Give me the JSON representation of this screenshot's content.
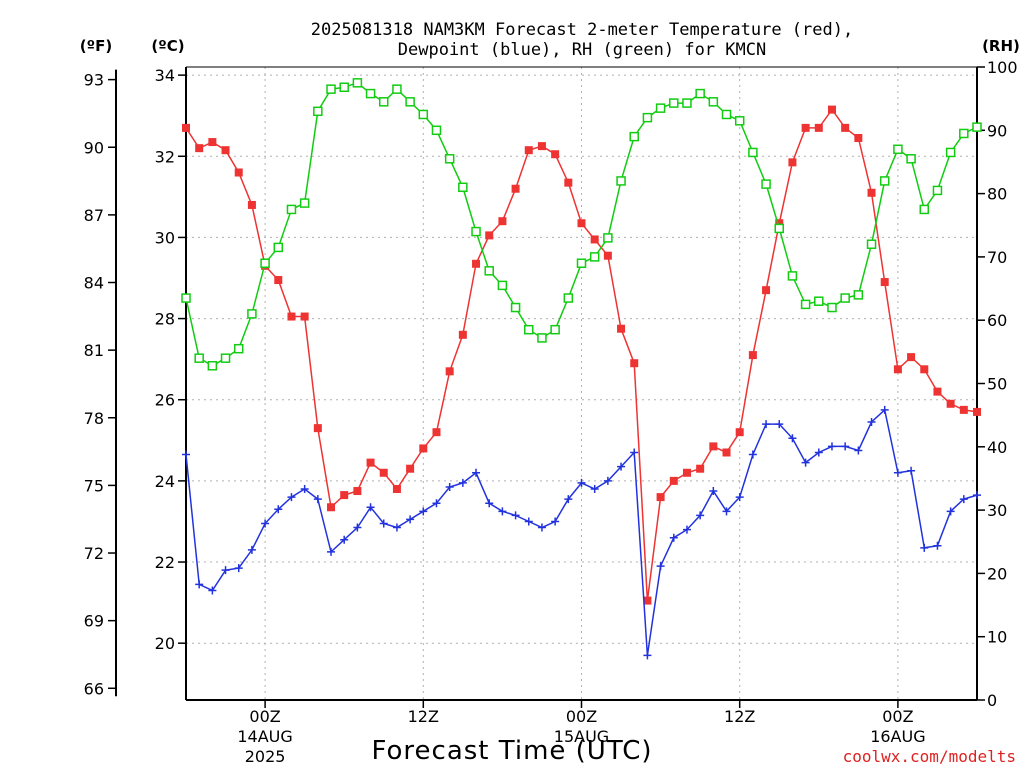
{
  "title_line1": "2025081318 NAM3KM Forecast 2-meter Temperature (red),",
  "title_line2": "Dewpoint (blue), RH (green) for KMCN",
  "credit": "coolwx.com/modelts",
  "colors": {
    "temperature": "#ee3333",
    "dewpoint": "#2233dd",
    "rh": "#11cc11",
    "grid": "#b0b0b0"
  },
  "chart_data": {
    "type": "line",
    "title": "2025081318 NAM3KM Forecast 2-meter Temperature (red), Dewpoint (blue), RH (green) for KMCN",
    "xlabel": "Forecast Time (UTC)",
    "x_unit": "forecast hour",
    "x_range": [
      0,
      60
    ],
    "x_ticks": [
      {
        "x": 6,
        "label": "00Z",
        "sub": [
          "14AUG",
          "2025"
        ]
      },
      {
        "x": 18,
        "label": "12Z",
        "sub": []
      },
      {
        "x": 30,
        "label": "00Z",
        "sub": [
          "15AUG"
        ]
      },
      {
        "x": 42,
        "label": "12Z",
        "sub": []
      },
      {
        "x": 54,
        "label": "00Z",
        "sub": [
          "16AUG"
        ]
      }
    ],
    "left_axis_f": {
      "label": "(ºF)",
      "ticks": [
        66,
        69,
        72,
        75,
        78,
        81,
        84,
        87,
        90,
        93
      ]
    },
    "left_axis_c": {
      "label": "(ºC)",
      "range": [
        18.6,
        34.2
      ],
      "ticks": [
        20,
        22,
        24,
        26,
        28,
        30,
        32,
        34
      ]
    },
    "right_axis": {
      "label": "(RH)",
      "range": [
        0,
        100
      ],
      "ticks": [
        0,
        10,
        20,
        30,
        40,
        50,
        60,
        70,
        80,
        90,
        100
      ]
    },
    "grid": true,
    "series": [
      {
        "name": "Temperature",
        "axis": "celsius",
        "marker": "filled-square",
        "x": [
          0,
          1,
          2,
          3,
          4,
          5,
          6,
          7,
          8,
          9,
          10,
          11,
          12,
          13,
          14,
          15,
          16,
          17,
          18,
          19,
          20,
          21,
          22,
          23,
          24,
          25,
          26,
          27,
          28,
          29,
          30,
          31,
          32,
          33,
          34,
          35,
          36,
          37,
          38,
          39,
          40,
          41,
          42,
          43,
          44,
          45,
          46,
          47,
          48,
          49,
          50,
          51,
          52,
          53,
          54,
          55,
          56,
          57,
          58,
          59,
          60
        ],
        "values": [
          32.7,
          32.2,
          32.35,
          32.15,
          31.6,
          30.8,
          29.3,
          28.95,
          28.05,
          28.05,
          25.3,
          23.35,
          23.65,
          23.75,
          24.45,
          24.2,
          23.8,
          24.3,
          24.8,
          25.2,
          26.7,
          27.6,
          29.35,
          30.05,
          30.4,
          31.2,
          32.15,
          32.25,
          32.05,
          31.35,
          30.35,
          29.95,
          29.55,
          27.75,
          26.9,
          21.05,
          23.6,
          24.0,
          24.2,
          24.3,
          24.85,
          24.7,
          25.2,
          27.1,
          28.7,
          30.35,
          31.85,
          32.7,
          32.7,
          33.15,
          32.7,
          32.45,
          31.1,
          28.9,
          26.75,
          27.05,
          26.75,
          26.2,
          25.9,
          25.75,
          25.7
        ]
      },
      {
        "name": "Dewpoint",
        "axis": "celsius",
        "marker": "plus",
        "x": [
          0,
          1,
          2,
          3,
          4,
          5,
          6,
          7,
          8,
          9,
          10,
          11,
          12,
          13,
          14,
          15,
          16,
          17,
          18,
          19,
          20,
          21,
          22,
          23,
          24,
          25,
          26,
          27,
          28,
          29,
          30,
          31,
          32,
          33,
          34,
          35,
          36,
          37,
          38,
          39,
          40,
          41,
          42,
          43,
          44,
          45,
          46,
          47,
          48,
          49,
          50,
          51,
          52,
          53,
          54,
          55,
          56,
          57,
          58,
          59,
          60
        ],
        "values": [
          24.65,
          21.45,
          21.3,
          21.8,
          21.85,
          22.3,
          22.95,
          23.3,
          23.6,
          23.8,
          23.55,
          22.25,
          22.55,
          22.85,
          23.35,
          22.95,
          22.85,
          23.05,
          23.25,
          23.45,
          23.85,
          23.95,
          24.2,
          23.45,
          23.25,
          23.15,
          23.0,
          22.85,
          23.0,
          23.55,
          23.95,
          23.8,
          24.0,
          24.35,
          24.7,
          19.7,
          21.9,
          22.6,
          22.8,
          23.15,
          23.75,
          23.25,
          23.6,
          24.65,
          25.4,
          25.4,
          25.05,
          24.45,
          24.7,
          24.85,
          24.85,
          24.75,
          25.45,
          25.75,
          24.2,
          24.25,
          22.35,
          22.4,
          23.25,
          23.55,
          23.65
        ]
      },
      {
        "name": "RH",
        "axis": "rh",
        "marker": "open-square",
        "x": [
          0,
          1,
          2,
          3,
          4,
          5,
          6,
          7,
          8,
          9,
          10,
          11,
          12,
          13,
          14,
          15,
          16,
          17,
          18,
          19,
          20,
          21,
          22,
          23,
          24,
          25,
          26,
          27,
          28,
          29,
          30,
          31,
          32,
          33,
          34,
          35,
          36,
          37,
          38,
          39,
          40,
          41,
          42,
          43,
          44,
          45,
          46,
          47,
          48,
          49,
          50,
          51,
          52,
          53,
          54,
          55,
          56,
          57,
          58,
          59,
          60
        ],
        "values": [
          63.5,
          54.0,
          52.8,
          54.0,
          55.5,
          61.0,
          69.0,
          71.5,
          77.5,
          78.5,
          93.0,
          96.5,
          96.8,
          97.5,
          95.8,
          94.5,
          96.5,
          94.5,
          92.5,
          90.0,
          85.5,
          81.0,
          74.0,
          67.8,
          65.5,
          62.0,
          58.5,
          57.2,
          58.5,
          63.5,
          69.0,
          70.0,
          73.0,
          82.0,
          89.0,
          92.0,
          93.5,
          94.3,
          94.3,
          95.8,
          94.5,
          92.5,
          91.5,
          86.5,
          81.5,
          74.5,
          67.0,
          62.5,
          63.0,
          62.0,
          63.5,
          64.0,
          72.0,
          82.0,
          87.0,
          85.5,
          77.5,
          80.5,
          86.5,
          89.5,
          90.5
        ]
      }
    ]
  }
}
